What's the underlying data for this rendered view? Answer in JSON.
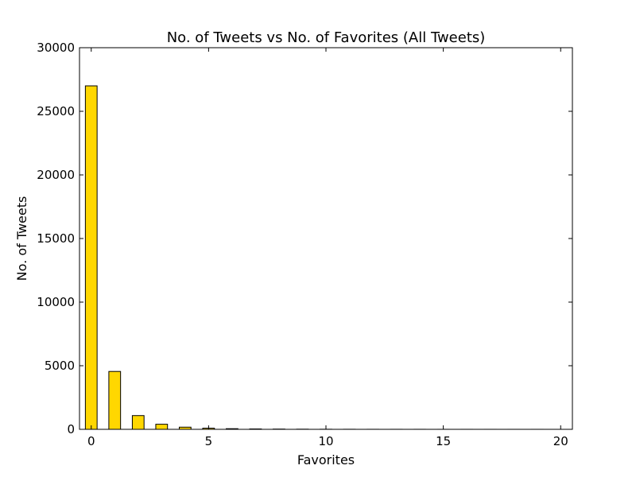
{
  "chart_data": {
    "type": "bar",
    "title": "No. of Tweets vs No. of Favorites (All Tweets)",
    "xlabel": "Favorites",
    "ylabel": "No. of Tweets",
    "xlim": [
      -0.5,
      20.5
    ],
    "ylim": [
      0,
      30000
    ],
    "xticks": [
      0,
      5,
      10,
      15,
      20
    ],
    "yticks": [
      0,
      5000,
      10000,
      15000,
      20000,
      25000,
      30000
    ],
    "grid": false,
    "bar_color": "#ffd700",
    "edge_color": "#000000",
    "bar_width": 0.5,
    "x": [
      0,
      1,
      2,
      3,
      4,
      5,
      6,
      7,
      8,
      9,
      10,
      11,
      12,
      13,
      14,
      15,
      16,
      17,
      18,
      19
    ],
    "values": [
      27000,
      4550,
      1080,
      400,
      170,
      90,
      50,
      30,
      20,
      12,
      8,
      6,
      4,
      3,
      3,
      2,
      2,
      1,
      1,
      1
    ]
  }
}
